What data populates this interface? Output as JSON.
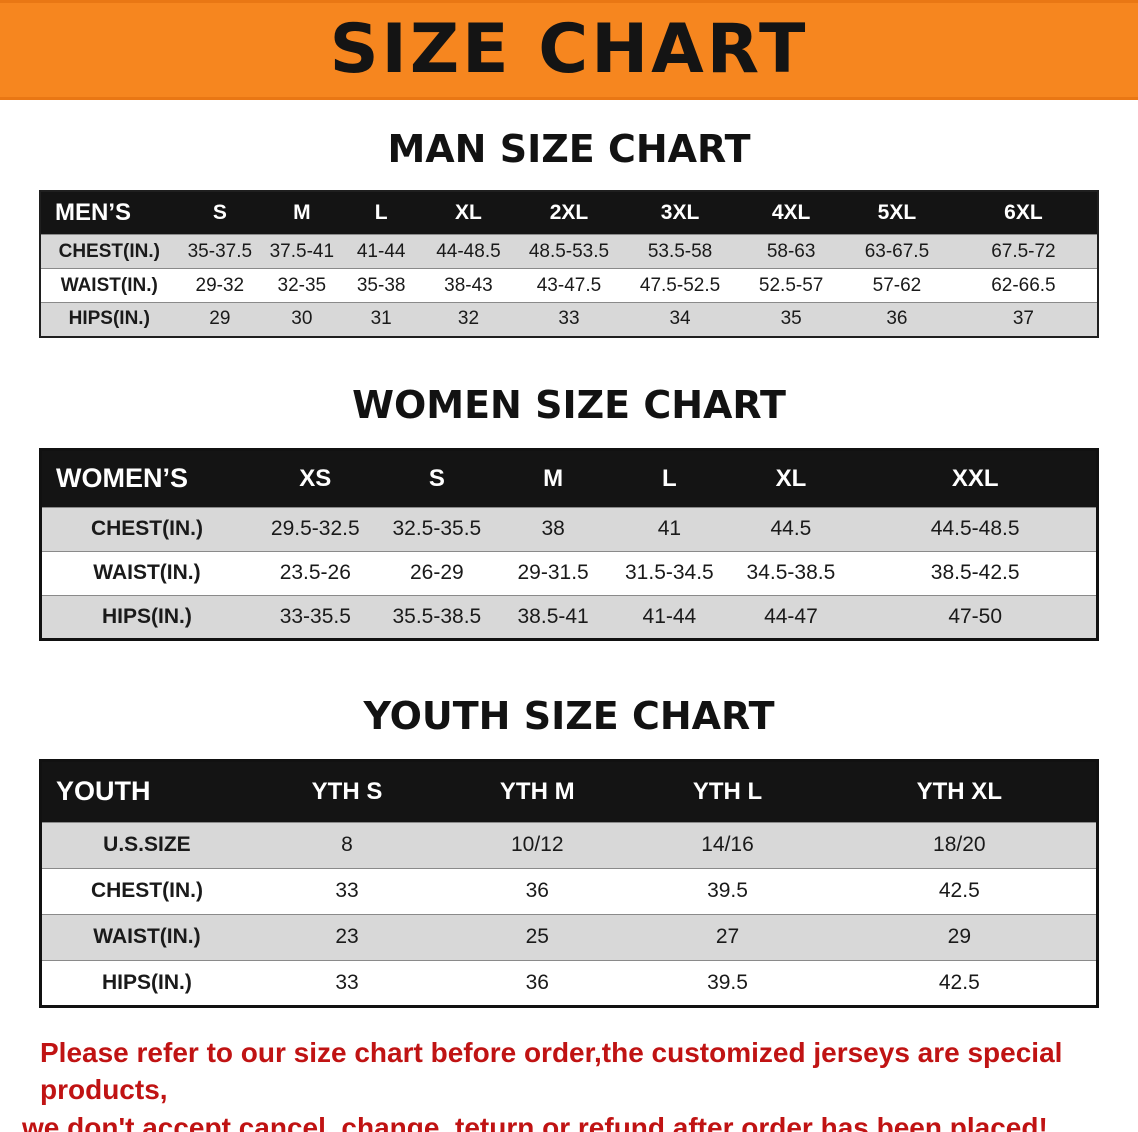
{
  "banner": {
    "title": "SIZE CHART",
    "bg_color": "#f6861f",
    "text_color": "#141414"
  },
  "colors": {
    "table_header_bg": "#141414",
    "table_header_text": "#ffffff",
    "row_shaded": "#d8d8d8",
    "footer_text": "#c01313"
  },
  "men": {
    "heading": "MAN SIZE CHART",
    "header": [
      "MEN’S",
      "S",
      "M",
      "L",
      "XL",
      "2XL",
      "3XL",
      "4XL",
      "5XL",
      "6XL"
    ],
    "rows": [
      [
        "CHEST(IN.)",
        "35-37.5",
        "37.5-41",
        "41-44",
        "44-48.5",
        "48.5-53.5",
        "53.5-58",
        "58-63",
        "63-67.5",
        "67.5-72"
      ],
      [
        "WAIST(IN.)",
        "29-32",
        "32-35",
        "35-38",
        "38-43",
        "43-47.5",
        "47.5-52.5",
        "52.5-57",
        "57-62",
        "62-66.5"
      ],
      [
        "HIPS(IN.)",
        "29",
        "30",
        "31",
        "32",
        "33",
        "34",
        "35",
        "36",
        "37"
      ]
    ]
  },
  "women": {
    "heading": "WOMEN SIZE CHART",
    "header": [
      "WOMEN’S",
      "XS",
      "S",
      "M",
      "L",
      "XL",
      "XXL"
    ],
    "rows": [
      [
        "CHEST(IN.)",
        "29.5-32.5",
        "32.5-35.5",
        "38",
        "41",
        "44.5",
        "44.5-48.5"
      ],
      [
        "WAIST(IN.)",
        "23.5-26",
        "26-29",
        "29-31.5",
        "31.5-34.5",
        "34.5-38.5",
        "38.5-42.5"
      ],
      [
        "HIPS(IN.)",
        "33-35.5",
        "35.5-38.5",
        "38.5-41",
        "41-44",
        "44-47",
        "47-50"
      ]
    ]
  },
  "youth": {
    "heading": "YOUTH SIZE CHART",
    "header": [
      "YOUTH",
      "YTH S",
      "YTH M",
      "YTH L",
      "YTH XL"
    ],
    "rows": [
      [
        "U.S.SIZE",
        "8",
        "10/12",
        "14/16",
        "18/20"
      ],
      [
        "CHEST(IN.)",
        "33",
        "36",
        "39.5",
        "42.5"
      ],
      [
        "WAIST(IN.)",
        "23",
        "25",
        "27",
        "29"
      ],
      [
        "HIPS(IN.)",
        "33",
        "36",
        "39.5",
        "42.5"
      ]
    ]
  },
  "footer": {
    "line1": "Please refer to our size chart before order,the customized jerseys are special products,",
    "line2": "we don't accept cancel, change, teturn or refund after order has been placed!"
  }
}
